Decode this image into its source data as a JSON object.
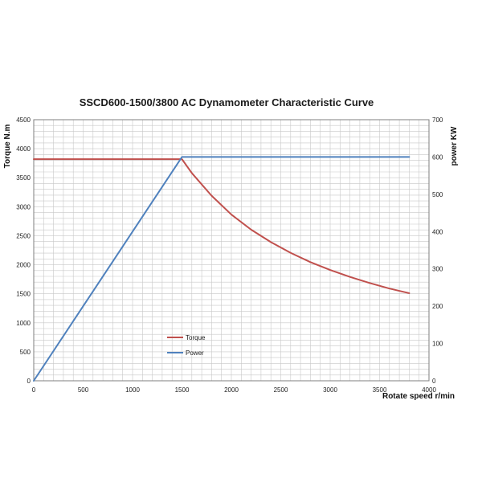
{
  "chart_data": {
    "type": "line",
    "title": "SSCD600-1500/3800 AC Dynamometer Characteristic Curve",
    "xlabel": "Rotate speed r/min",
    "ylabel_left": "Torque N.m",
    "ylabel_right": "power KW",
    "xlim": [
      0,
      4000
    ],
    "ylim_left": [
      0,
      4500
    ],
    "ylim_right": [
      0,
      700
    ],
    "x_ticks": [
      "0",
      "500",
      "1000",
      "1500",
      "2000",
      "2500",
      "3000",
      "3500",
      "4000"
    ],
    "y_left_ticks": [
      "0",
      "500",
      "1000",
      "1500",
      "2000",
      "2500",
      "3000",
      "3500",
      "4000",
      "4500"
    ],
    "y_right_ticks": [
      "0",
      "100",
      "200",
      "300",
      "400",
      "500",
      "600",
      "700"
    ],
    "grid": true,
    "legend_placement": "lower-center",
    "series": [
      {
        "name": "Torque",
        "axis": "left",
        "color": "#c0504d",
        "points": [
          [
            0,
            3820
          ],
          [
            1500,
            3820
          ],
          [
            1600,
            3580
          ],
          [
            1800,
            3190
          ],
          [
            2000,
            2865
          ],
          [
            2200,
            2605
          ],
          [
            2400,
            2390
          ],
          [
            2600,
            2205
          ],
          [
            2800,
            2045
          ],
          [
            3000,
            1910
          ],
          [
            3200,
            1790
          ],
          [
            3400,
            1685
          ],
          [
            3600,
            1590
          ],
          [
            3800,
            1510
          ]
        ]
      },
      {
        "name": "Power",
        "axis": "right",
        "color": "#4f81bd",
        "points": [
          [
            0,
            0
          ],
          [
            1500,
            600
          ],
          [
            3800,
            600
          ]
        ]
      }
    ]
  }
}
